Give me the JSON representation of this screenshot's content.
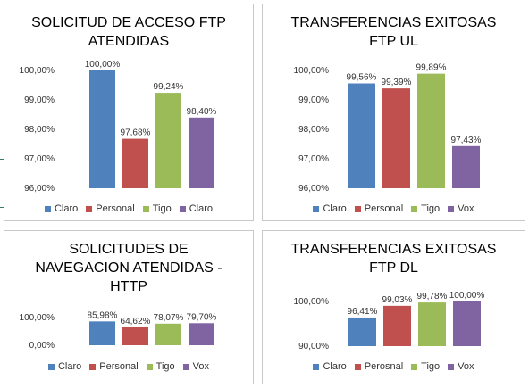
{
  "colors": {
    "blue": "#4f81bd",
    "red": "#c0504d",
    "green": "#9bbb59",
    "purple": "#8064a2"
  },
  "charts": [
    {
      "id": "ftp-access",
      "title": "SOLICITUD DE ACCESO FTP\nATENDIDAS",
      "chart_data": {
        "type": "bar",
        "categories": [
          "Claro",
          "Personal",
          "Tigo",
          "Claro"
        ],
        "values": [
          100.0,
          97.68,
          99.24,
          98.4
        ],
        "data_labels": [
          "100,00%",
          "97,68%",
          "99,24%",
          "98,40%"
        ],
        "yticks": [
          "100,00%",
          "99,00%",
          "98,00%",
          "97,00%",
          "96,00%"
        ],
        "ylim": [
          96,
          100
        ],
        "legend": "bottom"
      }
    },
    {
      "id": "ftp-ul",
      "title": "TRANSFERENCIAS EXITOSAS\nFTP UL",
      "chart_data": {
        "type": "bar",
        "categories": [
          "Claro",
          "Personal",
          "Tigo",
          "Vox"
        ],
        "values": [
          99.56,
          99.39,
          99.89,
          97.43
        ],
        "data_labels": [
          "99,56%",
          "99,39%",
          "99,89%",
          "97,43%"
        ],
        "yticks": [
          "100,00%",
          "99,00%",
          "98,00%",
          "97,00%",
          "96,00%"
        ],
        "ylim": [
          96,
          100
        ],
        "legend": "bottom"
      }
    },
    {
      "id": "http",
      "title": "SOLICITUDES DE\nNAVEGACION ATENDIDAS -\nHTTP",
      "chart_data": {
        "type": "bar",
        "categories": [
          "Claro",
          "Personal",
          "Tigo",
          "Vox"
        ],
        "values": [
          85.98,
          64.62,
          78.07,
          79.7
        ],
        "data_labels": [
          "85,98%",
          "64,62%",
          "78,07%",
          "79,70%"
        ],
        "yticks": [
          "100,00%",
          "0,00%"
        ],
        "ylim": [
          0,
          100
        ],
        "legend": "bottom"
      }
    },
    {
      "id": "ftp-dl",
      "title": "TRANSFERENCIAS EXITOSAS\nFTP DL",
      "chart_data": {
        "type": "bar",
        "categories": [
          "Claro",
          "Perosnal",
          "Tigo",
          "Vox"
        ],
        "values": [
          96.41,
          99.03,
          99.78,
          100.0
        ],
        "data_labels": [
          "96,41%",
          "99,03%",
          "99,78%",
          "100,00%"
        ],
        "yticks": [
          "100,00%",
          "90,00%"
        ],
        "ylim": [
          90,
          100
        ],
        "legend": "bottom"
      }
    }
  ]
}
